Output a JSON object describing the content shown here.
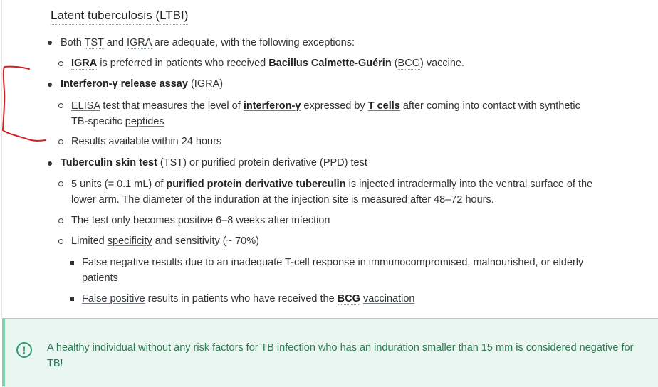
{
  "section": {
    "title": "Latent tuberculosis (LTBI)"
  },
  "items": {
    "both": {
      "pre": "Both ",
      "tst": "TST",
      "mid": " and ",
      "igra": "IGRA",
      "post": " are adequate, with the following exceptions:"
    },
    "igra_pref": {
      "igra": "IGRA",
      "mid": " is preferred in patients who received ",
      "bcg_bold": "Bacillus Calmette-Guérin",
      "mid2": " (",
      "bcg": "BCG",
      "mid3": ") ",
      "vaccine": "vaccine",
      "end": "."
    },
    "ifn": {
      "bold": "Interferon-γ release assay",
      "mid": " (",
      "abbr": "IGRA",
      "end": ")"
    },
    "elisa": {
      "elisa": "ELISA",
      "t1": " test that measures the level of ",
      "ifng": "interferon-γ",
      "t2": " expressed by ",
      "tcells": "T cells",
      "t3": " after coming into contact with synthetic TB-specific ",
      "peptides": "peptides"
    },
    "results": "Results available within 24 hours",
    "tst": {
      "bold": "Tuberculin skin test",
      "mid": " (",
      "tst": "TST",
      "mid2": ") or purified protein derivative (",
      "ppd": "PPD",
      "end": ") test"
    },
    "units": {
      "t1": "5 units (= 0.1 mL) of ",
      "ppdt": "purified protein derivative tuberculin",
      "t2": " is injected intradermally into the ventral surface of the lower arm. The diameter of the induration at the injection site is measured after 48–72 hours."
    },
    "positive": "The test only becomes positive 6–8 weeks after infection",
    "limited": {
      "t1": "Limited ",
      "spec": "specificity",
      "t2": " and sensitivity (~ 70%)"
    },
    "falseneg": {
      "fn": "False negative",
      "t1": " results due to an inadequate ",
      "tcell": "T-cell",
      "t2": " response in ",
      "immuno": "immunocompromised",
      "t3": ", ",
      "mal": "malnourished",
      "t4": ", or elderly patients"
    },
    "falsepos": {
      "fp": "False positive",
      "t1": " results in patients who have received the ",
      "bcg": "BCG",
      "t2": " ",
      "vacc": "vaccination"
    }
  },
  "callout": {
    "icon": "exclamation-circle-icon",
    "text": "A healthy individual without any risk factors for TB infection who has an induration smaller than 15 mm is considered negative for TB!"
  },
  "colors": {
    "callout_bg": "#eaf6f1",
    "callout_accent": "#2c9c6b",
    "annotation": "#d42020"
  }
}
